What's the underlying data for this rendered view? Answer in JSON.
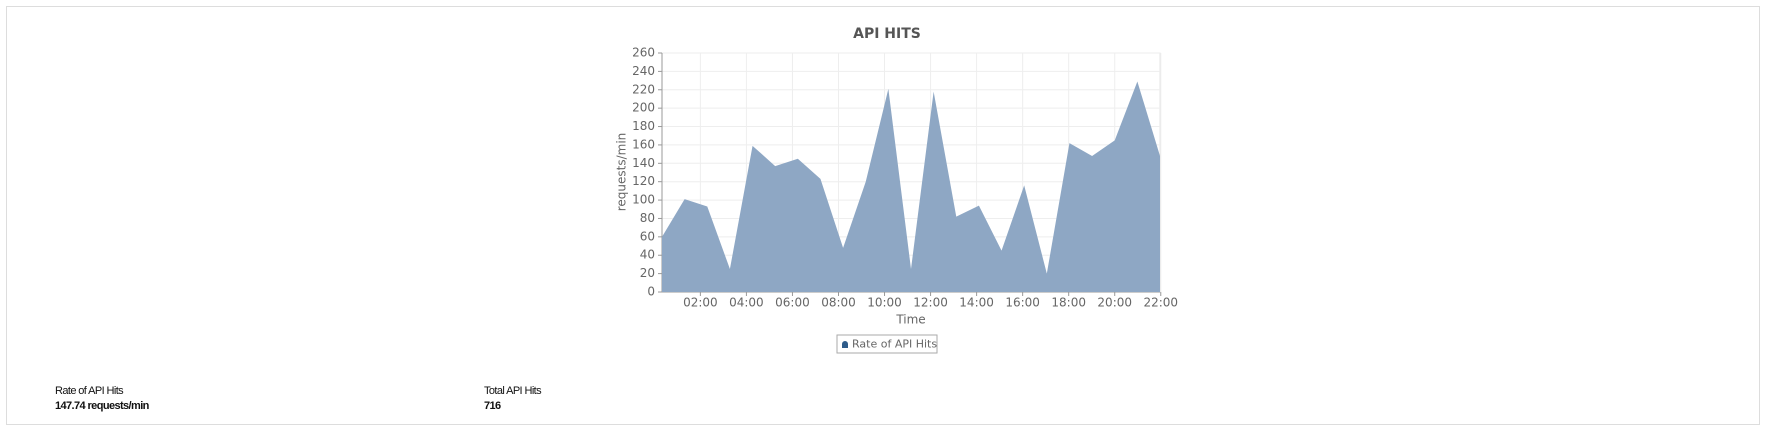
{
  "chart_data": {
    "type": "area",
    "title": "API HITS",
    "x_label": "Time",
    "y_label": "requests/min",
    "x": [
      "00:20",
      "01:19",
      "02:18",
      "03:17",
      "04:16",
      "05:15",
      "06:14",
      "07:13",
      "08:12",
      "09:11",
      "10:10",
      "11:09",
      "12:08",
      "13:07",
      "14:06",
      "15:05",
      "16:04",
      "17:03",
      "18:02",
      "19:01",
      "20:00",
      "20:59",
      "21:58"
    ],
    "series": [
      {
        "name": "Rate of API Hits",
        "color": "#8ea7c4",
        "values": [
          60,
          101,
          93,
          25,
          159,
          137,
          145,
          123,
          48,
          120,
          221,
          25,
          218,
          82,
          94,
          45,
          116,
          20,
          162,
          148,
          165,
          229,
          148
        ]
      }
    ],
    "xlim": [
      "00:20",
      "21:58"
    ],
    "xticks": [
      "02:00",
      "04:00",
      "06:00",
      "08:00",
      "10:00",
      "12:00",
      "14:00",
      "16:00",
      "18:00",
      "20:00",
      "22:00"
    ],
    "ylim": [
      0,
      260
    ],
    "yticks": [
      0,
      20,
      40,
      60,
      80,
      100,
      120,
      140,
      160,
      180,
      200,
      220,
      240,
      260
    ],
    "grid": true,
    "legend": "bottom"
  },
  "stats": [
    {
      "label": "Rate of API Hits",
      "value": "147.74 requests/min"
    },
    {
      "label": "Total API Hits",
      "value": "716"
    }
  ]
}
